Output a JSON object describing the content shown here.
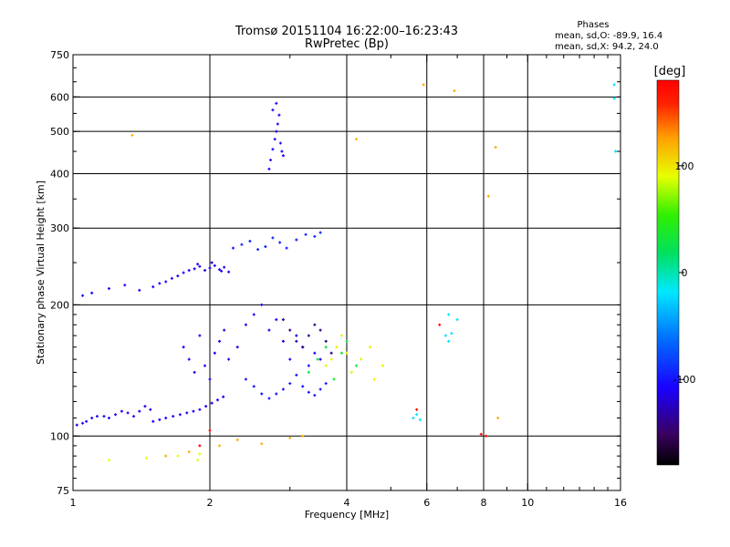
{
  "chart_data": {
    "type": "scatter",
    "title": "Tromsø 20151104 16:22:00–16:23:43",
    "subtitle": "RwPretec (Bp)",
    "stats": {
      "heading": "Phases",
      "line_o": "mean, sd,O:  -89.9, 16.4",
      "line_x": "mean, sd,X:   94.2, 24.0"
    },
    "xlabel": "Frequency [MHz]",
    "ylabel": "Stationary phase Virtual Height [km]",
    "xscale": "log",
    "yscale": "log",
    "xlim": [
      1,
      16
    ],
    "ylim": [
      75,
      750
    ],
    "xticks": [
      {
        "value": 1,
        "label": "1"
      },
      {
        "value": 2,
        "label": "2"
      },
      {
        "value": 4,
        "label": "4"
      },
      {
        "value": 6,
        "label": "6"
      },
      {
        "value": 8,
        "label": "8"
      },
      {
        "value": 10,
        "label": "10"
      },
      {
        "value": 16,
        "label": "16"
      }
    ],
    "yticks": [
      {
        "value": 75,
        "label": "75"
      },
      {
        "value": 100,
        "label": "100"
      },
      {
        "value": 200,
        "label": "200"
      },
      {
        "value": 300,
        "label": "300"
      },
      {
        "value": 400,
        "label": "400"
      },
      {
        "value": 500,
        "label": "500"
      },
      {
        "value": 600,
        "label": "600"
      },
      {
        "value": 750,
        "label": "750"
      }
    ],
    "grid_x": [
      2,
      4,
      6,
      8,
      10
    ],
    "grid_y": [
      100,
      200,
      300,
      400,
      500,
      600
    ],
    "grid": true,
    "colorbar": {
      "unit": "[deg]",
      "range": [
        -180,
        180
      ],
      "ticks": [
        {
          "value": 100,
          "label": "100"
        },
        {
          "value": 0,
          "label": "0"
        },
        {
          "value": -100,
          "label": "-100"
        }
      ]
    },
    "point_groups": [
      {
        "x": [
          1.02,
          1.05,
          1.07,
          1.1,
          1.13,
          1.17,
          1.2,
          1.24,
          1.28,
          1.32,
          1.36,
          1.4,
          1.44,
          1.48
        ],
        "y": [
          106,
          107,
          108,
          110,
          111,
          111,
          110,
          112,
          114,
          113,
          111,
          114,
          117,
          115
        ],
        "phase": -110
      },
      {
        "x": [
          1.5,
          1.55,
          1.6,
          1.66,
          1.72,
          1.78,
          1.84,
          1.9,
          1.96,
          2.02,
          2.08,
          2.14
        ],
        "y": [
          108,
          109,
          110,
          111,
          112,
          113,
          114,
          115,
          117,
          119,
          121,
          123
        ],
        "phase": -108
      },
      {
        "x": [
          1.05,
          1.1,
          1.2,
          1.3,
          1.4,
          1.5,
          1.55,
          1.6,
          1.65,
          1.7,
          1.75,
          1.8
        ],
        "y": [
          210,
          213,
          218,
          222,
          216,
          220,
          224,
          226,
          230,
          233,
          237,
          240
        ],
        "phase": -105
      },
      {
        "x": [
          1.85,
          1.9,
          1.95,
          2.0,
          2.05,
          2.1,
          2.15,
          2.2,
          1.88,
          2.02,
          2.12
        ],
        "y": [
          242,
          245,
          240,
          243,
          246,
          241,
          244,
          238,
          248,
          250,
          239
        ],
        "phase": -112
      },
      {
        "x": [
          2.25,
          2.35,
          2.45,
          2.55,
          2.65,
          2.75,
          2.85,
          2.95,
          3.1,
          3.25,
          3.4,
          3.5
        ],
        "y": [
          270,
          275,
          280,
          268,
          272,
          285,
          278,
          270,
          282,
          290,
          287,
          293
        ],
        "phase": -95
      },
      {
        "x": [
          2.7,
          2.72,
          2.75,
          2.78,
          2.8,
          2.82,
          2.84,
          2.86,
          2.88,
          2.9,
          2.75,
          2.8
        ],
        "y": [
          410,
          430,
          455,
          480,
          500,
          520,
          545,
          470,
          450,
          440,
          560,
          580
        ],
        "phase": -105
      },
      {
        "x": [
          1.75,
          1.8,
          1.85,
          1.9,
          1.95,
          2.0,
          2.05,
          2.1,
          2.15,
          2.2,
          2.3,
          2.4,
          2.5,
          2.6,
          2.7,
          2.8,
          2.9,
          3.0,
          3.1,
          3.2,
          3.3,
          3.4,
          3.5
        ],
        "y": [
          160,
          150,
          140,
          170,
          145,
          135,
          155,
          165,
          175,
          150,
          160,
          180,
          190,
          200,
          175,
          185,
          165,
          150,
          170,
          160,
          145,
          155,
          150
        ],
        "phase": -112
      },
      {
        "x": [
          2.4,
          2.5,
          2.6,
          2.7,
          2.8,
          2.9,
          3.0,
          3.1,
          3.2,
          3.3,
          3.4,
          3.5,
          3.6
        ],
        "y": [
          135,
          130,
          125,
          122,
          125,
          128,
          132,
          138,
          130,
          126,
          124,
          128,
          132
        ],
        "phase": -100
      },
      {
        "x": [
          2.9,
          3.0,
          3.1,
          3.2,
          3.3,
          3.4,
          3.5,
          3.6,
          3.7
        ],
        "y": [
          185,
          175,
          165,
          160,
          170,
          180,
          175,
          165,
          155
        ],
        "phase": -140
      },
      {
        "x": [
          3.6,
          3.7,
          3.8,
          3.9,
          4.0,
          4.1,
          4.3,
          4.5,
          4.6,
          4.8
        ],
        "y": [
          145,
          150,
          160,
          170,
          155,
          140,
          150,
          160,
          135,
          145
        ],
        "phase": 95
      },
      {
        "x": [
          3.3,
          3.45,
          3.6,
          3.75,
          3.9,
          4.0,
          4.2
        ],
        "y": [
          140,
          150,
          160,
          135,
          155,
          165,
          145
        ],
        "phase": 30
      },
      {
        "x": [
          5.6,
          5.7,
          5.8,
          6.6,
          6.7,
          6.8,
          6.7,
          7.0,
          15.5,
          15.5,
          15.6
        ],
        "y": [
          110,
          112,
          109,
          170,
          165,
          172,
          190,
          185,
          640,
          595,
          450
        ],
        "phase": -20
      },
      {
        "x": [
          1.35,
          1.6,
          1.8,
          2.1,
          2.3,
          2.6,
          3.0,
          3.2,
          4.2,
          5.9,
          6.9,
          8.2,
          8.5,
          8.6
        ],
        "y": [
          490,
          90,
          92,
          95,
          98,
          96,
          99,
          100,
          480,
          640,
          620,
          355,
          460,
          110
        ],
        "phase": 120
      },
      {
        "x": [
          1.9,
          2.0,
          7.9,
          8.1,
          6.4,
          5.7
        ],
        "y": [
          95,
          103,
          101,
          100,
          180,
          115
        ],
        "phase": 175
      },
      {
        "x": [
          1.2,
          1.45,
          1.7,
          1.9,
          1.88
        ],
        "y": [
          88,
          89,
          90,
          91,
          88
        ],
        "phase": 90
      }
    ]
  }
}
